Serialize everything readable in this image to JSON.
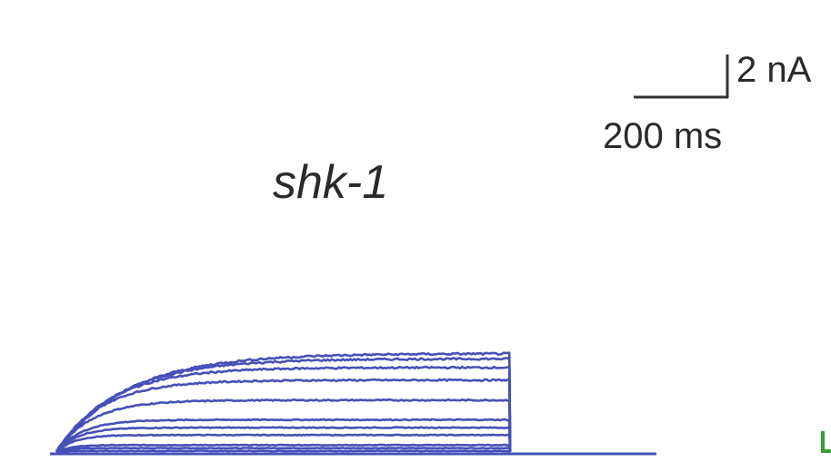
{
  "chart_data": {
    "type": "line",
    "title": "shk-1",
    "scale_bar": {
      "current_label": "2 nA",
      "current_nA": 2,
      "time_label": "200 ms",
      "time_ms": 200
    },
    "x_units": "ms",
    "y_units": "nA",
    "xlim": [
      0,
      1000
    ],
    "ylim": [
      0,
      6
    ],
    "sweep_duration_ms": 960,
    "series": [
      {
        "steady_state_nA": 0.05,
        "tau_ms": 20
      },
      {
        "steady_state_nA": 0.18,
        "tau_ms": 25
      },
      {
        "steady_state_nA": 0.32,
        "tau_ms": 30
      },
      {
        "steady_state_nA": 0.78,
        "tau_ms": 38
      },
      {
        "steady_state_nA": 1.12,
        "tau_ms": 45
      },
      {
        "steady_state_nA": 1.48,
        "tau_ms": 55
      },
      {
        "steady_state_nA": 2.38,
        "tau_ms": 75
      },
      {
        "steady_state_nA": 3.3,
        "tau_ms": 95
      },
      {
        "steady_state_nA": 3.88,
        "tau_ms": 115
      },
      {
        "steady_state_nA": 4.28,
        "tau_ms": 135
      },
      {
        "steady_state_nA": 4.52,
        "tau_ms": 150
      }
    ],
    "colors": {
      "trace": "#4650b8",
      "baseline": "#4650b8",
      "text": "#2a2a2a",
      "scale_bar": "#333333",
      "edge_mark": "#3a9a3a"
    }
  }
}
